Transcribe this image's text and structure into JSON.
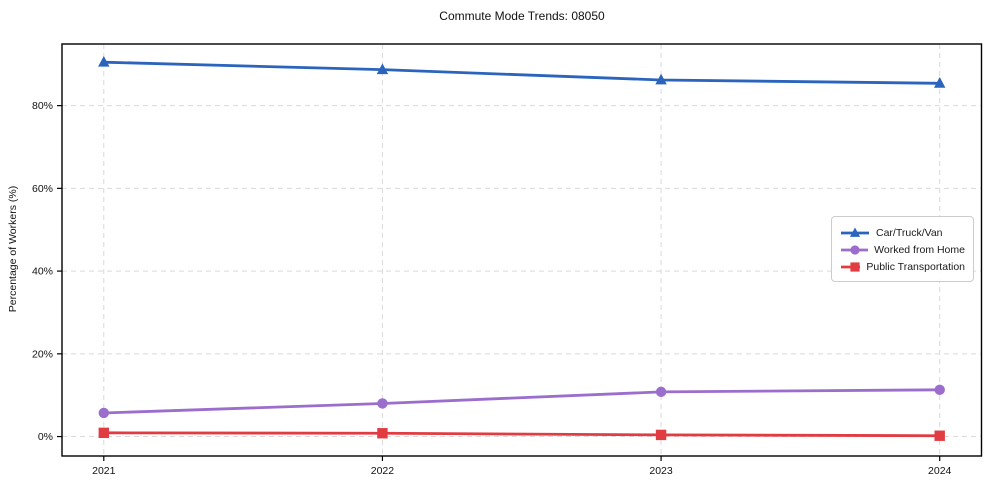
{
  "chart_data": {
    "type": "line",
    "title": "Commute Mode Trends: 08050",
    "xlabel": "",
    "ylabel": "Percentage of Workers (%)",
    "x": [
      2021,
      2022,
      2023,
      2024
    ],
    "xtick_labels": [
      "2021",
      "2022",
      "2023",
      "2024"
    ],
    "series": [
      {
        "name": "Car/Truck/Van",
        "values": [
          90.5,
          88.7,
          86.2,
          85.4
        ],
        "color": "#2b64bd",
        "marker": "triangle-up"
      },
      {
        "name": "Worked from Home",
        "values": [
          5.7,
          8.0,
          10.8,
          11.3
        ],
        "color": "#9b6ecd",
        "marker": "circle"
      },
      {
        "name": "Public Transportation",
        "values": [
          0.9,
          0.8,
          0.4,
          0.2
        ],
        "color": "#e13c42",
        "marker": "square"
      }
    ],
    "yticks": [
      0,
      20,
      40,
      60,
      80
    ],
    "ytick_labels": [
      "0%",
      "20%",
      "40%",
      "60%",
      "80%"
    ],
    "ylim": [
      -4.7,
      94.9
    ],
    "xlim": [
      2020.85,
      2024.15
    ],
    "grid": true,
    "grid_color": "#d9d9d9",
    "frame_color": "#000000",
    "legend_position": "right-center"
  }
}
